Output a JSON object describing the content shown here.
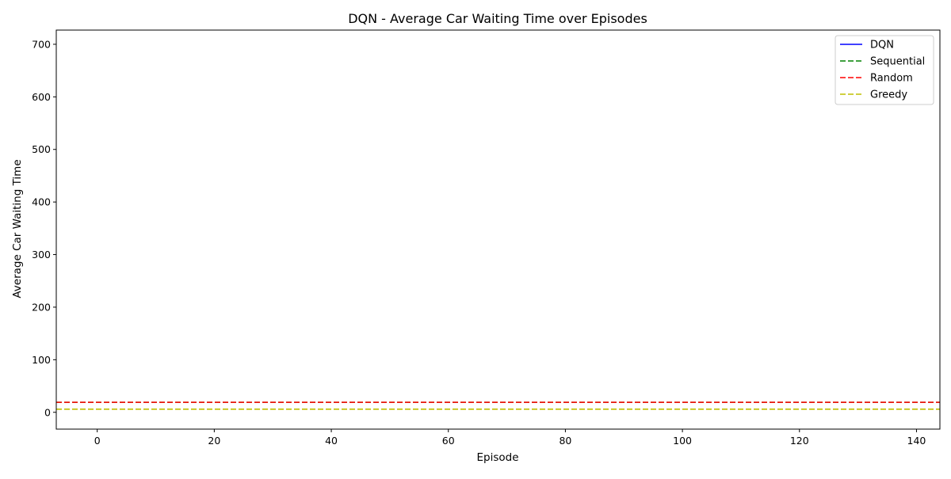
{
  "chart_data": {
    "type": "line",
    "title": "DQN - Average Car Waiting Time over Episodes",
    "xlabel": "Episode",
    "ylabel": "Average Car Waiting Time",
    "xlim": [
      -7,
      144
    ],
    "ylim": [
      -32,
      727
    ],
    "xticks": [
      0,
      20,
      40,
      60,
      80,
      100,
      120,
      140
    ],
    "yticks": [
      0,
      100,
      200,
      300,
      400,
      500,
      600,
      700
    ],
    "grid": false,
    "legend_position": "top-right",
    "series": [
      {
        "name": "DQN",
        "style": "solid",
        "color": "#0000ff",
        "x": [],
        "y": []
      },
      {
        "name": "Sequential",
        "style": "dashed",
        "color": "#008000",
        "y_constant": 19
      },
      {
        "name": "Random",
        "style": "dashed",
        "color": "#ff0000",
        "y_constant": 19
      },
      {
        "name": "Greedy",
        "style": "dashed",
        "color": "#bfbf00",
        "y_constant": 6
      }
    ]
  }
}
